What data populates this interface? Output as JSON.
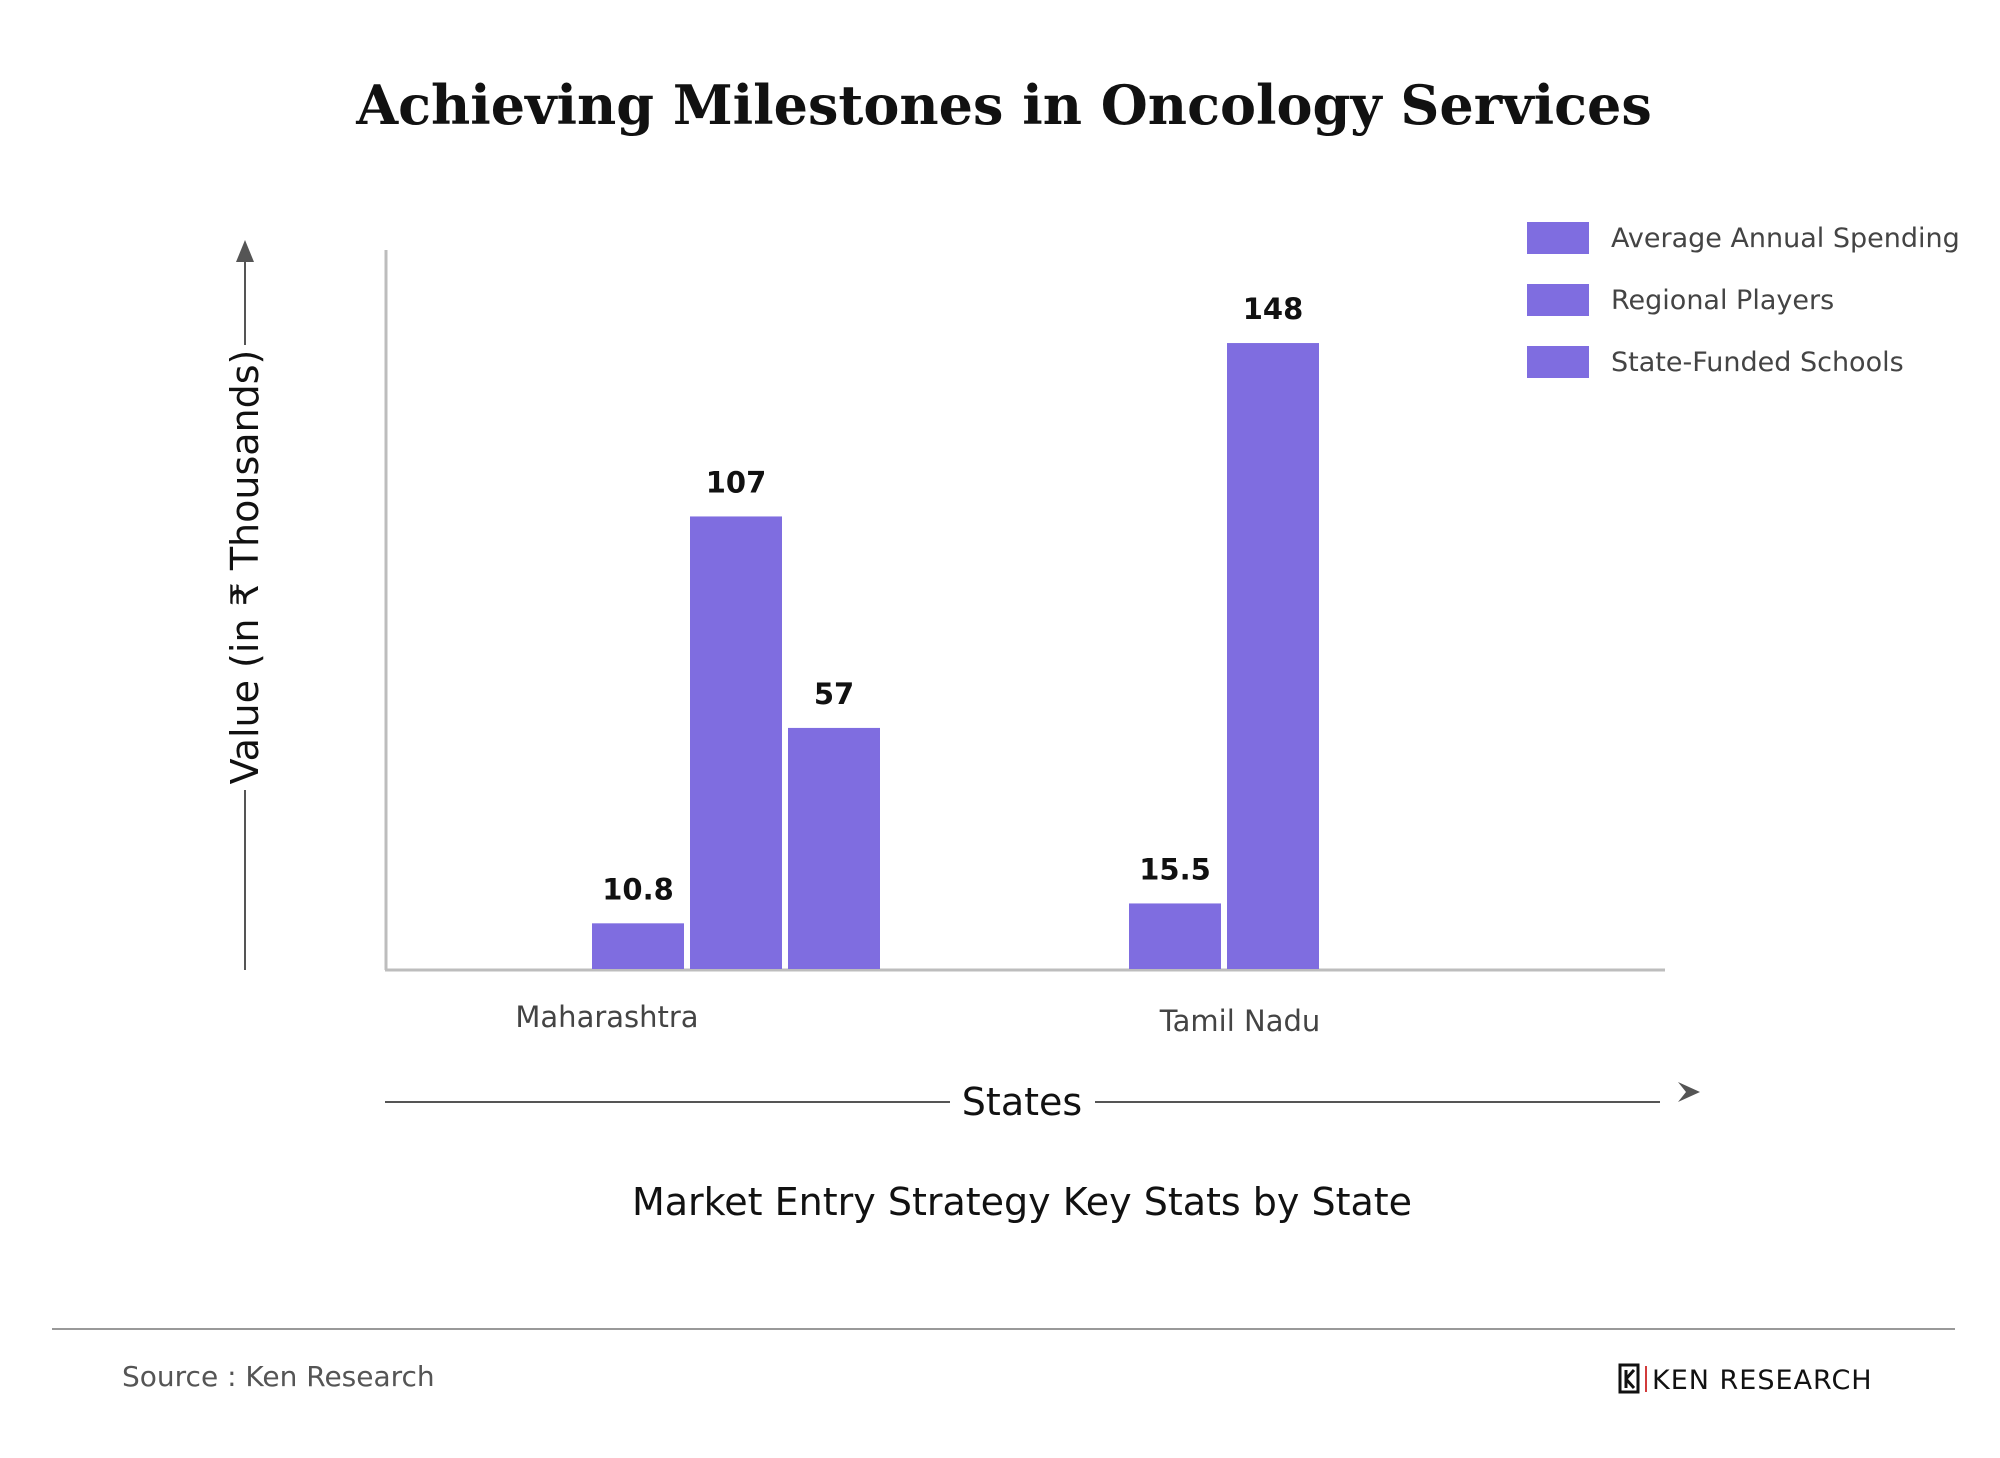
{
  "colors": {
    "bar": "#7f6de0",
    "axis": "#bdbdbd",
    "text": "#111111",
    "muted": "#555555"
  },
  "footer": {
    "source": "Source : Ken Research",
    "brand": "KEN RESEARCH",
    "brand_icon": "ken-research-logo-icon"
  },
  "chart_data": {
    "type": "bar",
    "title": "Achieving Milestones in Oncology Services",
    "subtitle": "Market Entry Strategy Key Stats by State",
    "xlabel": "States",
    "ylabel": "Value (in ₹ Thousands)",
    "categories": [
      "Maharashtra",
      "Tamil Nadu"
    ],
    "series": [
      {
        "name": "Average Annual Spending",
        "values": [
          10.8,
          15.5
        ],
        "labels": [
          "10.8",
          "15.5"
        ]
      },
      {
        "name": "Regional Players",
        "values": [
          107,
          148
        ],
        "labels": [
          "107",
          "148"
        ]
      },
      {
        "name": "State-Funded Schools",
        "values": [
          57,
          null
        ],
        "labels": [
          "57",
          ""
        ]
      }
    ],
    "ylim": [
      0,
      170
    ],
    "grid": false,
    "legend_position": "top-right"
  }
}
